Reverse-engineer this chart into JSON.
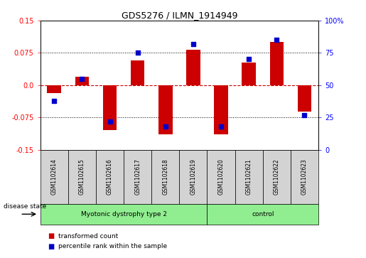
{
  "title": "GDS5276 / ILMN_1914949",
  "samples": [
    "GSM1102614",
    "GSM1102615",
    "GSM1102616",
    "GSM1102617",
    "GSM1102618",
    "GSM1102619",
    "GSM1102620",
    "GSM1102621",
    "GSM1102622",
    "GSM1102623"
  ],
  "red_bars": [
    -0.018,
    0.02,
    -0.105,
    0.057,
    -0.115,
    0.082,
    -0.115,
    0.052,
    0.1,
    -0.062
  ],
  "blue_dots_pct": [
    38,
    55,
    22,
    75,
    18,
    82,
    18,
    70,
    85,
    27
  ],
  "ylim": [
    -0.15,
    0.15
  ],
  "yticks_left": [
    -0.15,
    -0.075,
    0.0,
    0.075,
    0.15
  ],
  "yticks_right": [
    0,
    25,
    50,
    75,
    100
  ],
  "groups": [
    {
      "label": "Myotonic dystrophy type 2",
      "start": 0,
      "end": 6,
      "color": "#90EE90"
    },
    {
      "label": "control",
      "start": 6,
      "end": 10,
      "color": "#90EE90"
    }
  ],
  "disease_state_label": "disease state",
  "legend_red": "transformed count",
  "legend_blue": "percentile rank within the sample",
  "bar_color": "#CC0000",
  "dot_color": "#0000CC",
  "zero_line_color": "#CC0000",
  "grid_color": "#000000",
  "sample_box_color": "#D3D3D3"
}
